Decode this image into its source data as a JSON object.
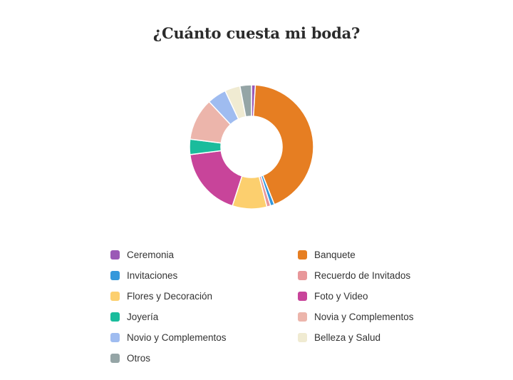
{
  "title": "¿Cuánto cuesta mi boda?",
  "chart_data": {
    "type": "pie",
    "variant": "donut",
    "title": "¿Cuánto cuesta mi boda?",
    "legend_position": "bottom",
    "categories": [
      "Ceremonia",
      "Banquete",
      "Invitaciones",
      "Recuerdo de Invitados",
      "Flores y Decoración",
      "Foto y Video",
      "Joyería",
      "Novia y Complementos",
      "Novio y Complementos",
      "Belleza y Salud",
      "Otros"
    ],
    "values": [
      1,
      43,
      1,
      1,
      9,
      18,
      4,
      11,
      5,
      4,
      3
    ],
    "colors": [
      "#9b59b6",
      "#e67e22",
      "#3498db",
      "#e8979a",
      "#fccf6e",
      "#c8449a",
      "#1abc9c",
      "#ecb5ab",
      "#9fbcf0",
      "#f0ebd2",
      "#95a5a6"
    ],
    "unit": "percent (estimated from arc angles)"
  },
  "legend": {
    "left": [
      {
        "label": "Ceremonia",
        "color": "#9b59b6"
      },
      {
        "label": "Invitaciones",
        "color": "#3498db"
      },
      {
        "label": "Flores y Decoración",
        "color": "#fccf6e"
      },
      {
        "label": "Joyería",
        "color": "#1abc9c"
      },
      {
        "label": "Novio y Complementos",
        "color": "#9fbcf0"
      },
      {
        "label": "Otros",
        "color": "#95a5a6"
      }
    ],
    "right": [
      {
        "label": "Banquete",
        "color": "#e67e22"
      },
      {
        "label": "Recuerdo de Invitados",
        "color": "#e8979a"
      },
      {
        "label": "Foto y Video",
        "color": "#c8449a"
      },
      {
        "label": "Novia y Complementos",
        "color": "#ecb5ab"
      },
      {
        "label": "Belleza y Salud",
        "color": "#f0ebd2"
      }
    ]
  }
}
